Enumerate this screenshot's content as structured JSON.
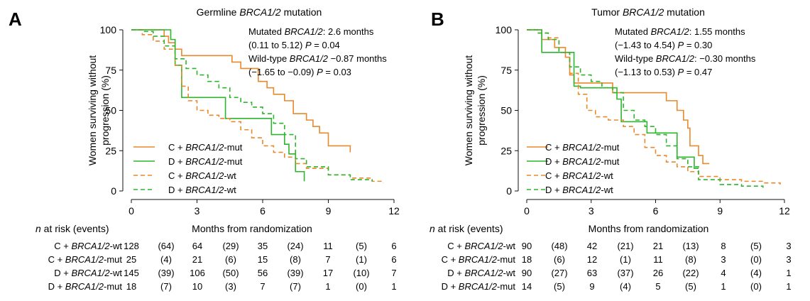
{
  "panels": [
    {
      "letter": "A",
      "title_prefix": "Germline ",
      "title_italic": "BRCA1/2",
      "title_suffix": " mutation",
      "ylabel_line1": "Women surviving without",
      "ylabel_line2": "progression (%)",
      "xlabel": "Months from randomization",
      "risk_header": "n at risk (events)",
      "annotation": [
        {
          "segments": [
            {
              "t": "Mutated ",
              "i": false
            },
            {
              "t": "BRCA1/2",
              "i": true
            },
            {
              "t": ": 2.6 months",
              "i": false
            }
          ]
        },
        {
          "segments": [
            {
              "t": "(0.11 to 5.12) ",
              "i": false
            },
            {
              "t": "P",
              "i": true
            },
            {
              "t": " = 0.04",
              "i": false
            }
          ]
        },
        {
          "segments": [
            {
              "t": "Wild-type ",
              "i": false
            },
            {
              "t": "BRCA1/2",
              "i": true
            },
            {
              "t": " −0.87 months",
              "i": false
            }
          ]
        },
        {
          "segments": [
            {
              "t": "(−1.65 to −0.09) ",
              "i": false
            },
            {
              "t": "P",
              "i": true
            },
            {
              "t": " = 0.03",
              "i": false
            }
          ]
        }
      ],
      "legend": [
        {
          "prefix": "C + ",
          "gene": "BRCA1/2",
          "suffix": "-mut",
          "color": "#E8892B",
          "dash": false
        },
        {
          "prefix": "D + ",
          "gene": "BRCA1/2",
          "suffix": "-mut",
          "color": "#2DB52D",
          "dash": false
        },
        {
          "prefix": "C + ",
          "gene": "BRCA1/2",
          "suffix": "-wt",
          "color": "#E8892B",
          "dash": true
        },
        {
          "prefix": "D + ",
          "gene": "BRCA1/2",
          "suffix": "-wt",
          "color": "#2DB52D",
          "dash": true
        }
      ],
      "risk_rows": [
        {
          "prefix": "C + ",
          "gene": "BRCA1/2",
          "suffix": "-wt",
          "values": [
            "128",
            "(64)",
            "64",
            "(29)",
            "35",
            "(24)",
            "11",
            "(5)",
            "6"
          ]
        },
        {
          "prefix": "C + ",
          "gene": "BRCA1/2",
          "suffix": "-mut",
          "values": [
            "25",
            "(4)",
            "21",
            "(6)",
            "15",
            "(8)",
            "7",
            "(1)",
            "6"
          ]
        },
        {
          "prefix": "D + ",
          "gene": "BRCA1/2",
          "suffix": "-wt",
          "values": [
            "145",
            "(39)",
            "106",
            "(50)",
            "56",
            "(39)",
            "17",
            "(10)",
            "7"
          ]
        },
        {
          "prefix": "D + ",
          "gene": "BRCA1/2",
          "suffix": "-mut",
          "values": [
            "18",
            "(7)",
            "10",
            "(3)",
            "7",
            "(7)",
            "1",
            "(0)",
            "1"
          ]
        }
      ]
    },
    {
      "letter": "B",
      "title_prefix": "Tumor ",
      "title_italic": "BRCA1/2",
      "title_suffix": " mutation",
      "ylabel_line1": "Women surviving without",
      "ylabel_line2": "progression (%)",
      "xlabel": "Months from randomization",
      "risk_header": "n at risk (events)",
      "annotation": [
        {
          "segments": [
            {
              "t": "Mutated ",
              "i": false
            },
            {
              "t": "BRCA1/2",
              "i": true
            },
            {
              "t": ": 1.55 months",
              "i": false
            }
          ]
        },
        {
          "segments": [
            {
              "t": "(−1.43 to 4.54) ",
              "i": false
            },
            {
              "t": "P",
              "i": true
            },
            {
              "t": " = 0.30",
              "i": false
            }
          ]
        },
        {
          "segments": [
            {
              "t": "Wild-type ",
              "i": false
            },
            {
              "t": "BRCA1/2",
              "i": true
            },
            {
              "t": ": −0.30 months",
              "i": false
            }
          ]
        },
        {
          "segments": [
            {
              "t": "(−1.13 to 0.53) ",
              "i": false
            },
            {
              "t": "P",
              "i": true
            },
            {
              "t": " = 0.47",
              "i": false
            }
          ]
        }
      ],
      "legend": [
        {
          "prefix": "C + ",
          "gene": "BRCA1/2",
          "suffix": "-mut",
          "color": "#E8892B",
          "dash": false
        },
        {
          "prefix": "D + ",
          "gene": "BRCA1/2",
          "suffix": "-mut",
          "color": "#2DB52D",
          "dash": false
        },
        {
          "prefix": "C + ",
          "gene": "BRCA1/2",
          "suffix": "-wt",
          "color": "#E8892B",
          "dash": true
        },
        {
          "prefix": "D + ",
          "gene": "BRCA1/2",
          "suffix": "-wt",
          "color": "#2DB52D",
          "dash": true
        }
      ],
      "risk_rows": [
        {
          "prefix": "C + ",
          "gene": "BRCA1/2",
          "suffix": "-wt",
          "values": [
            "90",
            "(48)",
            "42",
            "(21)",
            "21",
            "(13)",
            "8",
            "(5)",
            "3"
          ]
        },
        {
          "prefix": "C + ",
          "gene": "BRCA1/2",
          "suffix": "-mut",
          "values": [
            "18",
            "(6)",
            "12",
            "(1)",
            "11",
            "(8)",
            "3",
            "(0)",
            "3"
          ]
        },
        {
          "prefix": "D + ",
          "gene": "BRCA1/2",
          "suffix": "-wt",
          "values": [
            "90",
            "(27)",
            "63",
            "(37)",
            "26",
            "(22)",
            "4",
            "(4)",
            "1"
          ]
        },
        {
          "prefix": "D + ",
          "gene": "BRCA1/2",
          "suffix": "-mut",
          "values": [
            "14",
            "(5)",
            "9",
            "(4)",
            "5",
            "(5)",
            "1",
            "(0)",
            "1"
          ]
        }
      ]
    }
  ],
  "chart_data": [
    {
      "type": "line",
      "title": "Germline BRCA1/2 mutation",
      "xlabel": "Months from randomization",
      "ylabel": "Women surviving without progression (%)",
      "xlim": [
        0,
        12
      ],
      "ylim": [
        0,
        100
      ],
      "xticks": [
        0,
        3,
        6,
        9,
        12
      ],
      "yticks": [
        0,
        25,
        50,
        75,
        100
      ],
      "legend_position": "bottom-left",
      "series": [
        {
          "name": "C + BRCA1/2-mut",
          "color": "#E8892B",
          "dash": false,
          "x": [
            0,
            0.6,
            1.5,
            1.7,
            2.0,
            2.3,
            4.5,
            4.6,
            5.0,
            5.8,
            6.2,
            6.5,
            7.0,
            7.4,
            8.0,
            8.3,
            8.6,
            9.0,
            10.0
          ],
          "y": [
            100,
            100,
            96,
            92,
            88,
            84,
            84,
            80,
            76,
            68,
            64,
            60,
            56,
            48,
            44,
            40,
            36,
            28,
            24
          ]
        },
        {
          "name": "D + BRCA1/2-mut",
          "color": "#2DB52D",
          "dash": false,
          "x": [
            0,
            1.6,
            1.8,
            2.0,
            2.3,
            3.5,
            4.3,
            6.0,
            6.4,
            7.0,
            7.2,
            7.5,
            7.9
          ],
          "y": [
            100,
            100,
            94,
            78,
            58,
            58,
            45,
            45,
            35,
            29,
            23,
            12,
            6
          ]
        },
        {
          "name": "C + BRCA1/2-wt",
          "color": "#E8892B",
          "dash": true,
          "x": [
            0,
            0.5,
            1.0,
            1.5,
            2.0,
            2.3,
            2.6,
            3.0,
            3.5,
            4.0,
            4.5,
            5.0,
            5.5,
            6.0,
            6.5,
            7.0,
            7.5,
            8.0,
            9.0,
            10.0,
            11.0,
            11.5
          ],
          "y": [
            100,
            97,
            93,
            88,
            78,
            65,
            56,
            50,
            47,
            45,
            43,
            38,
            33,
            28,
            24,
            21,
            17,
            14,
            10,
            8,
            6,
            5
          ]
        },
        {
          "name": "D + BRCA1/2-wt",
          "color": "#2DB52D",
          "dash": true,
          "x": [
            0,
            0.5,
            1.0,
            1.5,
            2.0,
            2.5,
            3.0,
            3.5,
            4.0,
            4.5,
            5.0,
            5.5,
            6.0,
            6.5,
            7.0,
            7.5,
            8.0,
            9.0,
            10.0,
            11.0
          ],
          "y": [
            100,
            99,
            96,
            90,
            82,
            76,
            72,
            68,
            64,
            58,
            55,
            52,
            48,
            42,
            35,
            20,
            15,
            10,
            7,
            6
          ]
        }
      ]
    },
    {
      "type": "line",
      "title": "Tumor BRCA1/2 mutation",
      "xlabel": "Months from randomization",
      "ylabel": "Women surviving without progression (%)",
      "xlim": [
        0,
        12
      ],
      "ylim": [
        0,
        100
      ],
      "xticks": [
        0,
        3,
        6,
        9,
        12
      ],
      "yticks": [
        0,
        25,
        50,
        75,
        100
      ],
      "legend_position": "bottom-left",
      "series": [
        {
          "name": "C + BRCA1/2-mut",
          "color": "#E8892B",
          "dash": false,
          "x": [
            0,
            0.7,
            1.3,
            1.8,
            2.0,
            2.2,
            3.6,
            4.0,
            6.0,
            6.5,
            7.0,
            7.3,
            7.5,
            7.6,
            7.8,
            8.0,
            8.2,
            8.5
          ],
          "y": [
            100,
            94,
            89,
            83,
            72,
            67,
            67,
            61,
            61,
            56,
            50,
            44,
            39,
            28,
            28,
            22,
            17,
            17
          ]
        },
        {
          "name": "D + BRCA1/2-mut",
          "color": "#2DB52D",
          "dash": false,
          "x": [
            0,
            0.7,
            1.8,
            2.2,
            2.5,
            4.2,
            4.4,
            5.0,
            5.6,
            6.0,
            7.0,
            7.8,
            8.0
          ],
          "y": [
            100,
            86,
            86,
            65,
            64,
            57,
            43,
            43,
            36,
            36,
            21,
            14,
            14
          ]
        },
        {
          "name": "C + BRCA1/2-wt",
          "color": "#E8892B",
          "dash": true,
          "x": [
            0,
            0.5,
            1.0,
            1.5,
            2.0,
            2.4,
            2.8,
            3.2,
            3.8,
            4.5,
            5.0,
            5.5,
            6.0,
            6.5,
            7.0,
            7.5,
            8.0,
            9.0,
            10.0,
            11.0,
            11.8
          ],
          "y": [
            100,
            98,
            95,
            86,
            73,
            60,
            50,
            46,
            44,
            40,
            35,
            27,
            22,
            18,
            15,
            12,
            9,
            7,
            6,
            5,
            4
          ]
        },
        {
          "name": "D + BRCA1/2-wt",
          "color": "#2DB52D",
          "dash": true,
          "x": [
            0,
            0.5,
            1.0,
            1.5,
            2.0,
            2.5,
            3.0,
            3.5,
            4.0,
            4.5,
            5.0,
            5.5,
            6.0,
            6.5,
            7.0,
            7.5,
            8.0,
            9.0,
            10.0,
            11.0
          ],
          "y": [
            100,
            98,
            94,
            86,
            77,
            72,
            68,
            64,
            61,
            50,
            44,
            40,
            35,
            28,
            20,
            15,
            7,
            4,
            3,
            2
          ]
        }
      ]
    }
  ]
}
